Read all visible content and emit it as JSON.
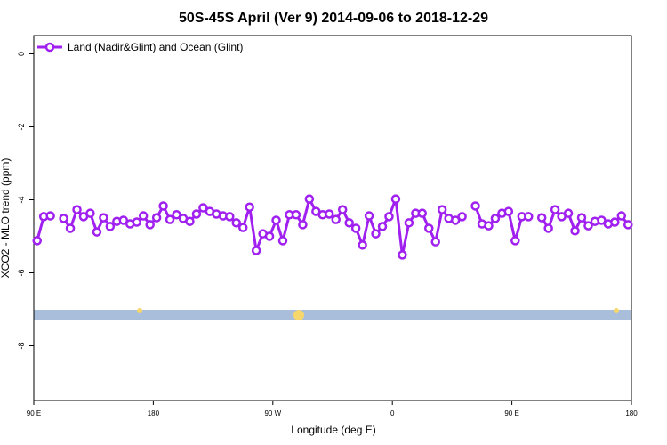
{
  "chart_data": {
    "type": "line",
    "title": "50S-45S April (Ver 9)   2014-09-06 to 2018-12-29",
    "xlabel": "Longitude (deg E)",
    "ylabel": "XCO2 - MLO trend (ppm)",
    "x": [
      92.5,
      97.5,
      102.5,
      107.5,
      112.5,
      117.5,
      122.5,
      127.5,
      132.5,
      137.5,
      142.5,
      147.5,
      152.5,
      157.5,
      162.5,
      167.5,
      172.5,
      177.5,
      182.5,
      187.5,
      192.5,
      197.5,
      202.5,
      207.5,
      212.5,
      217.5,
      222.5,
      227.5,
      232.5,
      237.5,
      242.5,
      247.5,
      252.5,
      257.5,
      262.5,
      267.5,
      272.5,
      277.5,
      282.5,
      287.5,
      292.5,
      297.5,
      302.5,
      307.5,
      312.5,
      317.5,
      322.5,
      327.5,
      332.5,
      337.5,
      342.5,
      347.5,
      352.5,
      357.5,
      362.5,
      367.5,
      372.5,
      377.5,
      382.5,
      387.5,
      392.5,
      397.5,
      402.5,
      407.5,
      412.5,
      417.5,
      422.5,
      427.5,
      432.5,
      437.5,
      442.5,
      447.5,
      452.5,
      457.5,
      462.5,
      467.5,
      472.5,
      477.5,
      482.5,
      487.5,
      492.5,
      497.5,
      502.5,
      507.5,
      512.5,
      517.5,
      522.5,
      527.5,
      532.5,
      537.5
    ],
    "series": [
      {
        "name": "Land (Nadir&Glint) and Ocean (Glint)",
        "color": "#a020f0",
        "values": [
          -5.12,
          -4.46,
          -4.44,
          null,
          -4.51,
          -4.78,
          -4.27,
          -4.46,
          -4.37,
          -4.88,
          -4.49,
          -4.73,
          -4.59,
          -4.56,
          -4.66,
          -4.61,
          -4.44,
          -4.68,
          -4.49,
          -4.17,
          -4.54,
          -4.41,
          -4.51,
          -4.59,
          -4.39,
          -4.22,
          -4.32,
          -4.39,
          -4.44,
          -4.46,
          -4.63,
          -4.76,
          -4.2,
          -5.39,
          -4.93,
          -5.0,
          -4.56,
          -5.12,
          -4.41,
          -4.41,
          -4.68,
          -3.98,
          -4.32,
          -4.41,
          -4.39,
          -4.54,
          -4.27,
          -4.63,
          -4.78,
          -5.24,
          -4.44,
          -4.93,
          -4.73,
          -4.46,
          -3.98,
          -5.51,
          -4.63,
          -4.37,
          -4.37,
          -4.78,
          -5.15,
          -4.27,
          -4.51,
          -4.56,
          -4.46,
          null,
          -4.17,
          -4.66,
          -4.71,
          -4.51,
          -4.37,
          -4.32,
          -5.12,
          -4.46,
          -4.46,
          null,
          -4.49,
          -4.78,
          -4.27,
          -4.46,
          -4.37,
          -4.85,
          -4.49,
          -4.71,
          -4.59,
          -4.56,
          -4.66,
          -4.61,
          -4.44,
          -4.68
        ]
      }
    ],
    "xlim": [
      90,
      540
    ],
    "xticks": [
      {
        "value": 90,
        "label": "90 E"
      },
      180,
      {
        "value": 270,
        "label": "90 W"
      },
      {
        "value": 360,
        "label": "0"
      },
      {
        "value": 450,
        "label": "90 E"
      },
      {
        "value": 540,
        "label": "180"
      }
    ],
    "ylim": [
      -9.5,
      0.5
    ],
    "yticks": [
      0,
      -2,
      -4,
      -6,
      -8
    ],
    "legend": "top-left"
  }
}
